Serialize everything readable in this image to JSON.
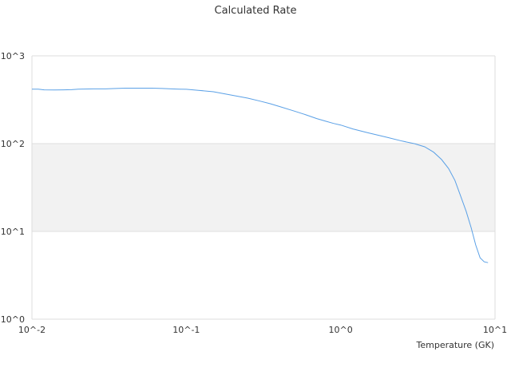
{
  "chart_data": {
    "type": "line",
    "title": "Calculated Rate",
    "xlabel": "Temperature (GK)",
    "ylabel": "",
    "x_scale": "log",
    "y_scale": "log",
    "xlim": [
      0.01,
      10
    ],
    "ylim": [
      1,
      1000
    ],
    "x_ticks": [
      "10^-2",
      "10^-1",
      "10^0",
      "10^1"
    ],
    "y_ticks": [
      "10^0",
      "10^1",
      "10^2",
      "10^3"
    ],
    "grid": true,
    "alternate_band_color": "#f2f2f2",
    "line_color": "#5aa0e6",
    "series": [
      {
        "x": [
          0.01,
          0.011,
          0.012,
          0.014,
          0.016,
          0.018,
          0.02,
          0.025,
          0.03,
          0.035,
          0.04,
          0.05,
          0.06,
          0.07,
          0.08,
          0.09,
          0.1,
          0.12,
          0.15,
          0.2,
          0.25,
          0.3,
          0.35,
          0.4,
          0.5,
          0.6,
          0.7,
          0.8,
          0.9,
          1.0,
          1.2,
          1.5,
          2.0,
          2.5,
          3.0,
          3.5,
          4.0,
          4.5,
          5.0,
          5.5,
          6.0,
          6.5,
          7.0,
          7.5,
          8.0,
          8.5,
          9.0
        ],
        "y": [
          418,
          418,
          410,
          408,
          410,
          412,
          418,
          420,
          420,
          425,
          428,
          428,
          428,
          425,
          420,
          418,
          416,
          405,
          390,
          355,
          330,
          305,
          285,
          265,
          235,
          212,
          193,
          180,
          170,
          163,
          147,
          133,
          118,
          107,
          100,
          92,
          80,
          66,
          52,
          38,
          25,
          17,
          11,
          7,
          5,
          4.5,
          4.4
        ]
      }
    ]
  }
}
